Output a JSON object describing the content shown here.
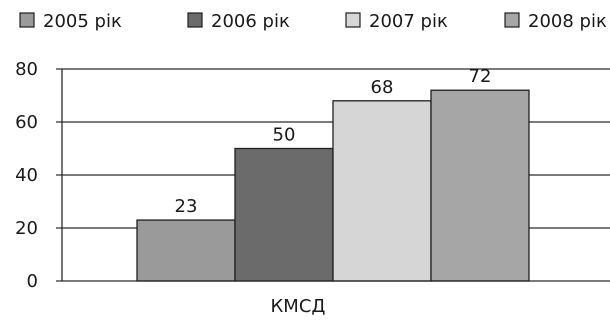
{
  "chart_data": {
    "type": "bar",
    "categories": [
      "КМСД"
    ],
    "series": [
      {
        "name": "2005 рік",
        "values": [
          23
        ],
        "color": "#9a9a9a"
      },
      {
        "name": "2006 рік",
        "values": [
          50
        ],
        "color": "#6b6b6b"
      },
      {
        "name": "2007 рік",
        "values": [
          68
        ],
        "color": "#d6d6d6"
      },
      {
        "name": "2008 рік",
        "values": [
          72
        ],
        "color": "#a6a6a6"
      }
    ],
    "yticks": [
      0,
      20,
      40,
      60,
      80
    ],
    "ylim": [
      0,
      80
    ],
    "grid": "horizontal",
    "legend": "top",
    "data_labels": true
  }
}
